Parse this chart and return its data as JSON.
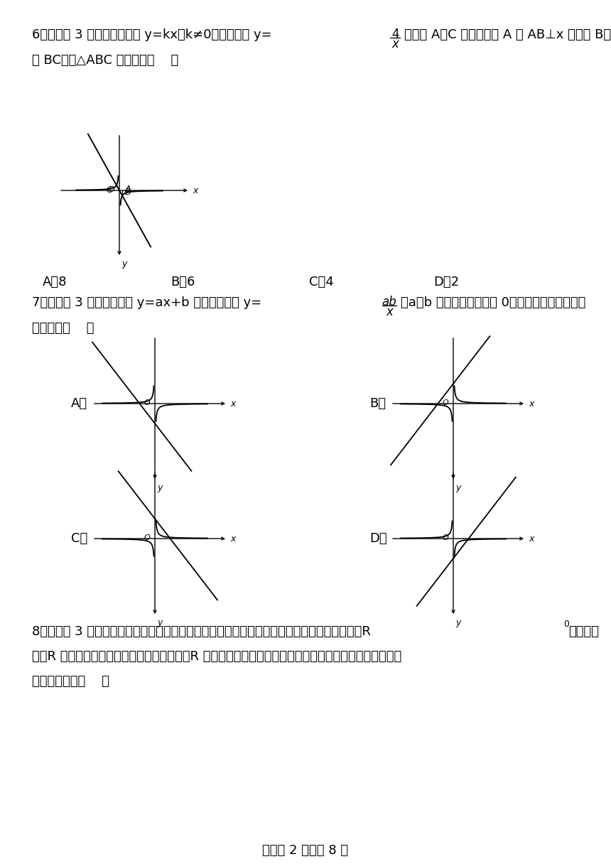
{
  "bg_color": "#ffffff",
  "lm": 45,
  "fs": 13.0,
  "footer": "试卷第 2 页，共 8 页",
  "q6_line1a": "6．（本题 3 分）如图，直线 y=kx（k≠0）与双曲线 y=",
  "q6_frac4_num": "4",
  "q6_frac4_den": "x",
  "q6_line1b": "相交于 A、C 两点，过点 A 作 AB⊥x 轴于点 B，连",
  "q6_line2": "接 BC，则△ABC 的面积为（    ）",
  "q6_choices": [
    "A．8",
    "B．6",
    "C．4",
    "D．2"
  ],
  "q7_line1a": "7．（本题 3 分）一次函数 y=ax+b 与反比例函数 y=",
  "q7_frac_num": "ab",
  "q7_frac_den": "x",
  "q7_line1b": "（a、b 为常数且均不等于 0）在同一坐标系内的图",
  "q7_line2": "象可能是（    ）",
  "q8_line1a": "8．（本题 3 分）如图，甲所示的是一款酒精浓度监测仪的简化电路图，其电源电压保持不变，R",
  "q8_subscript": "0",
  "q8_line1b": "为定值电",
  "q8_line2": "阵，R 为酒精气体浓度传感器（气敏电阵），R 的阵值与酒精浓度的关系如图乙所示，当接通电源时，下列",
  "q8_line3": "说法正确的是（    ）"
}
